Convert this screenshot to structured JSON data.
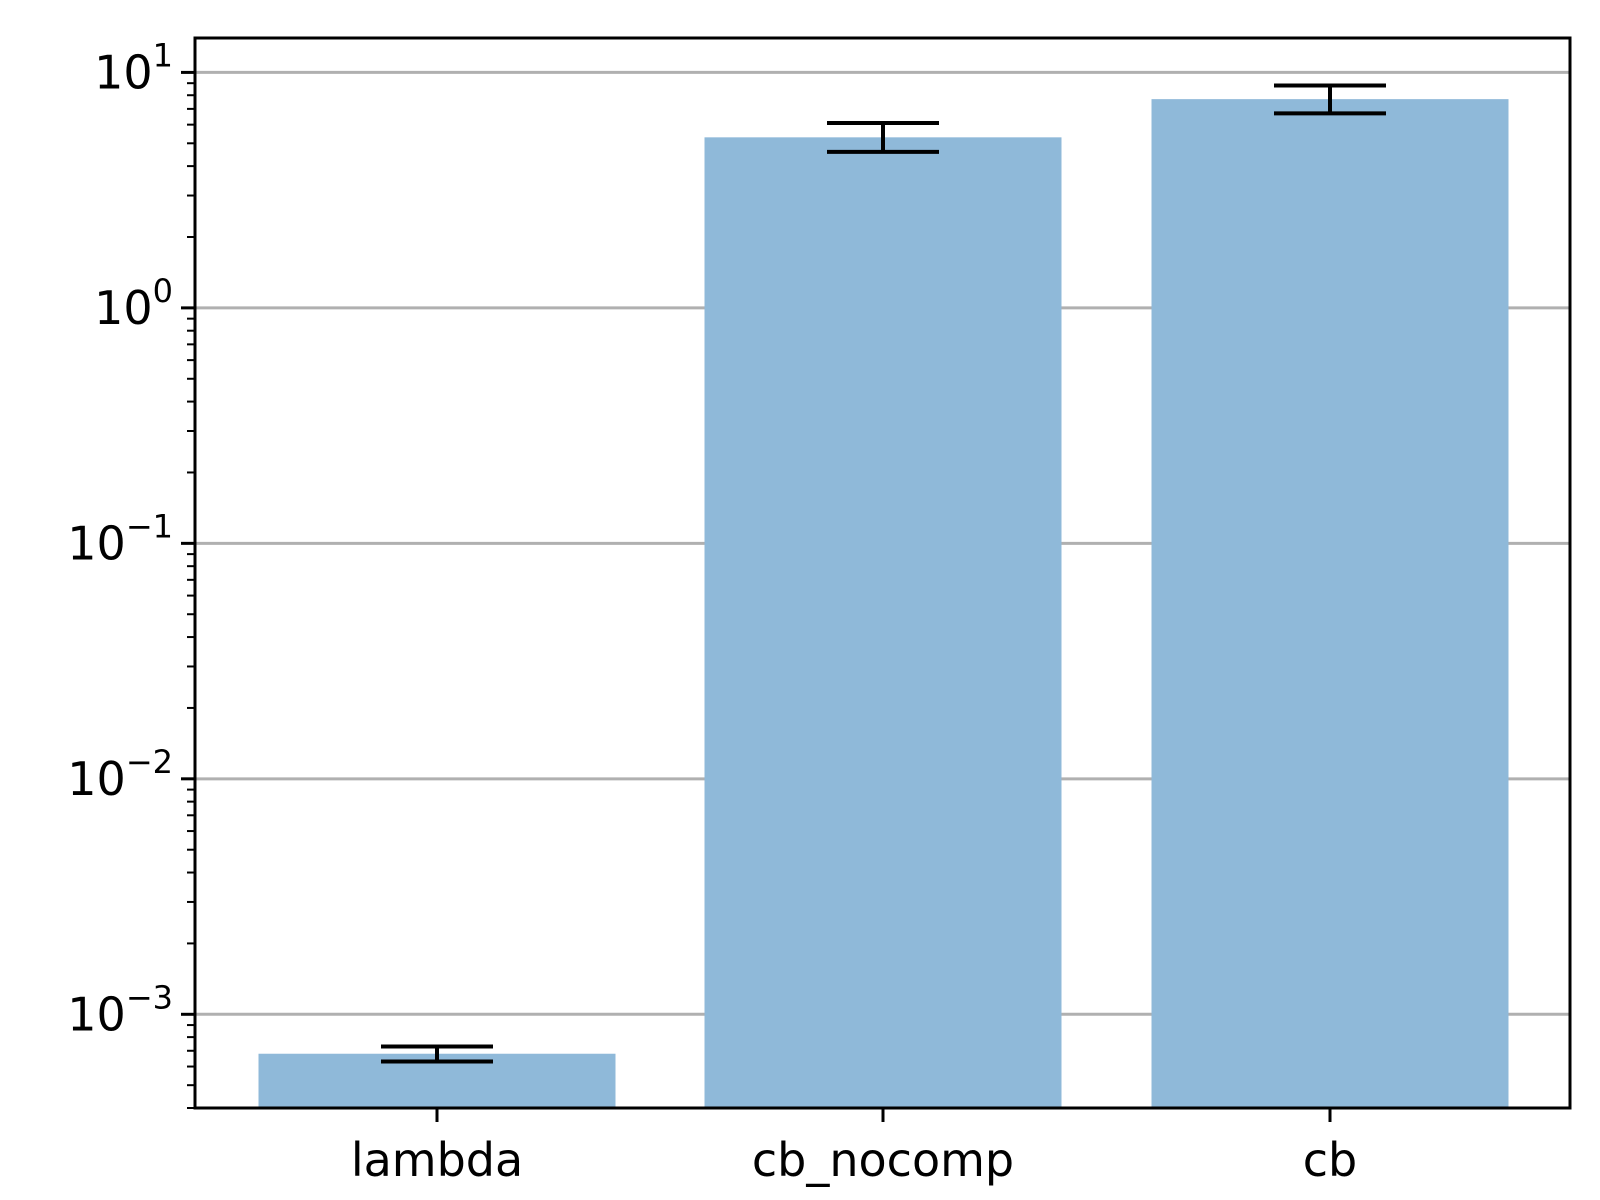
{
  "chart_data": {
    "type": "bar",
    "categories": [
      "lambda",
      "cb_nocomp",
      "cb"
    ],
    "values": [
      0.00068,
      5.3,
      7.7
    ],
    "error_bars": [
      {
        "lower": 0.00063,
        "upper": 0.00073
      },
      {
        "lower": 4.6,
        "upper": 6.1
      },
      {
        "lower": 6.7,
        "upper": 8.8
      }
    ],
    "title": "",
    "xlabel": "",
    "ylabel": "",
    "yscale": "log",
    "ylim": [
      0.0004,
      14
    ],
    "yticks": [
      {
        "base": "10",
        "exp": "1"
      },
      {
        "base": "10",
        "exp": "0"
      },
      {
        "base": "10",
        "exp": "−1"
      },
      {
        "base": "10",
        "exp": "−2"
      },
      {
        "base": "10",
        "exp": "−3"
      }
    ],
    "grid": "y-major",
    "bar_color": "#8fb9d9",
    "grid_color": "#b0b0b0"
  }
}
